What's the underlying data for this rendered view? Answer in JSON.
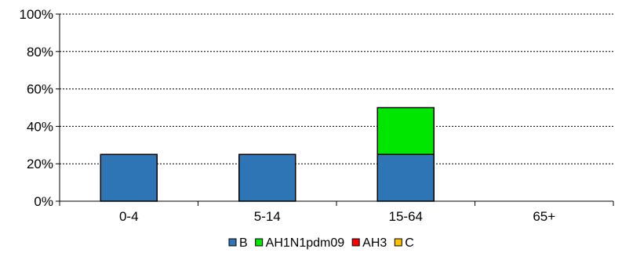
{
  "chart_data": {
    "type": "bar",
    "stacked": true,
    "categories": [
      "0-4",
      "5-14",
      "15-64",
      "65+"
    ],
    "series": [
      {
        "name": "B",
        "color": "#2e75b6",
        "values": [
          25,
          25,
          25,
          0
        ]
      },
      {
        "name": "AH1N1pdm09",
        "color": "#00e600",
        "values": [
          0,
          0,
          25,
          0
        ]
      },
      {
        "name": "AH3",
        "color": "#ff0000",
        "values": [
          0,
          0,
          0,
          0
        ]
      },
      {
        "name": "C",
        "color": "#ffc000",
        "values": [
          0,
          0,
          0,
          0
        ]
      }
    ],
    "ylim": [
      0,
      100
    ],
    "yticks": [
      "0%",
      "20%",
      "40%",
      "60%",
      "80%",
      "100%"
    ],
    "grid": true,
    "legend_position": "bottom"
  }
}
